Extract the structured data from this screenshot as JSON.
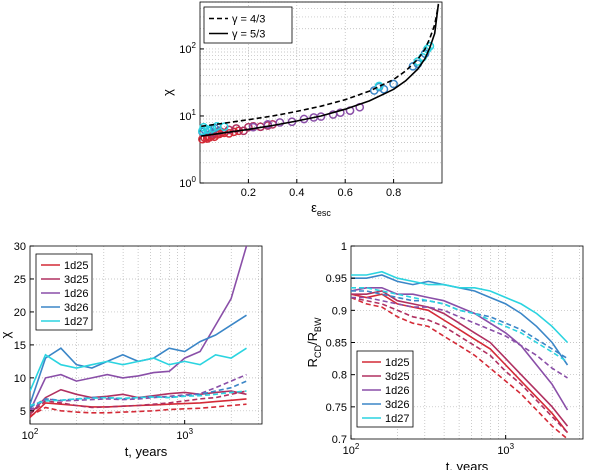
{
  "chart_data": [
    {
      "type": "scatter",
      "title": "",
      "xlabel": "ε",
      "xlabel_sub": "esc",
      "ylabel": "χ",
      "xlim": [
        0,
        1
      ],
      "ylim_log10": [
        0,
        2.7
      ],
      "yscale": "log",
      "xticks": [
        0.2,
        0.4,
        0.6,
        0.8
      ],
      "xtick_labels": [
        "0.2",
        "0.4",
        "0.6",
        "0.8"
      ],
      "yticks_log10": [
        0,
        1,
        2
      ],
      "ytick_bases": [
        "10",
        "10",
        "10"
      ],
      "ytick_exps": [
        "0",
        "1",
        "2"
      ],
      "grid": true,
      "legend_position": "top-left",
      "legend": [
        "γ = 4/3",
        "γ = 5/3"
      ],
      "curves": [
        {
          "name": "γ = 4/3",
          "style": "dashed",
          "x": [
            0.005,
            0.1,
            0.2,
            0.3,
            0.4,
            0.5,
            0.6,
            0.7,
            0.8,
            0.85,
            0.9,
            0.93,
            0.95,
            0.97,
            0.985
          ],
          "y": [
            7.0,
            7.8,
            8.8,
            10.0,
            11.7,
            14.0,
            17.5,
            23.5,
            35.0,
            47.0,
            70.0,
            100.0,
            145.0,
            230.0,
            450.0
          ]
        },
        {
          "name": "γ = 5/3",
          "style": "solid",
          "x": [
            0.005,
            0.1,
            0.2,
            0.3,
            0.4,
            0.5,
            0.6,
            0.7,
            0.8,
            0.85,
            0.9,
            0.93,
            0.95,
            0.97,
            0.985
          ],
          "y": [
            5.0,
            5.6,
            6.3,
            7.2,
            8.4,
            10.0,
            12.6,
            16.8,
            25.0,
            33.5,
            50.0,
            72.0,
            105.0,
            170.0,
            470.0
          ]
        }
      ],
      "scatter_series": [
        {
          "name": "1d25",
          "color": "#d42a37",
          "x": [
            0.01,
            0.02,
            0.03,
            0.04,
            0.05,
            0.06,
            0.08,
            0.1,
            0.12,
            0.14,
            0.16,
            0.03,
            0.05,
            0.07,
            0.09
          ],
          "y": [
            4.5,
            4.7,
            5.0,
            4.8,
            5.2,
            4.9,
            5.4,
            5.6,
            5.5,
            5.8,
            6.0,
            4.6,
            5.1,
            5.3,
            5.7
          ]
        },
        {
          "name": "3d25",
          "color": "#b03060",
          "x": [
            0.05,
            0.08,
            0.12,
            0.15,
            0.18,
            0.2,
            0.22,
            0.25,
            0.28,
            0.3
          ],
          "y": [
            5.5,
            6.0,
            6.2,
            6.5,
            6.0,
            6.8,
            7.0,
            6.9,
            7.2,
            7.5
          ]
        },
        {
          "name": "1d26",
          "color": "#8a4fa8",
          "x": [
            0.22,
            0.28,
            0.33,
            0.38,
            0.43,
            0.47,
            0.5,
            0.55,
            0.58,
            0.62,
            0.66
          ],
          "y": [
            6.8,
            7.5,
            8.0,
            8.2,
            9.0,
            9.5,
            9.8,
            10.5,
            11.2,
            12.0,
            13.5
          ]
        },
        {
          "name": "3d26",
          "color": "#3b86c7",
          "x": [
            0.01,
            0.02,
            0.04,
            0.06,
            0.72,
            0.74,
            0.76,
            0.8,
            0.88,
            0.9,
            0.93
          ],
          "y": [
            5.8,
            6.2,
            6.0,
            6.6,
            24.0,
            27.0,
            25.0,
            30.0,
            55.0,
            60.0,
            85.0
          ]
        },
        {
          "name": "1d27",
          "color": "#2bd4e0",
          "x": [
            0.01,
            0.015,
            0.03,
            0.05,
            0.07,
            0.1,
            0.74,
            0.9,
            0.92,
            0.94,
            0.95
          ],
          "y": [
            6.0,
            6.8,
            6.3,
            6.5,
            7.0,
            6.9,
            28.0,
            65.0,
            75.0,
            100.0,
            110.0
          ]
        }
      ]
    },
    {
      "type": "line",
      "title": "",
      "xlabel": "t, years",
      "ylabel": "χ",
      "xscale": "log",
      "xlim_log10": [
        2,
        3.5
      ],
      "xticks_log10": [
        2,
        3
      ],
      "xtick_bases": [
        "10",
        "10"
      ],
      "xtick_exps": [
        "2",
        "3"
      ],
      "ylim": [
        3,
        30
      ],
      "yticks": [
        5,
        10,
        15,
        20,
        25,
        30
      ],
      "ytick_labels": [
        "5",
        "10",
        "15",
        "20",
        "25",
        "30"
      ],
      "grid": true,
      "legend_position": "top-left",
      "legend": [
        "1d25",
        "3d25",
        "1d26",
        "3d26",
        "1d27"
      ],
      "x_log10": [
        2.0,
        2.1,
        2.2,
        2.3,
        2.4,
        2.5,
        2.6,
        2.7,
        2.8,
        2.9,
        3.0,
        3.1,
        3.2,
        3.3,
        3.4
      ],
      "series": [
        {
          "name": "1d25",
          "color": "#d42a37",
          "style": "solid",
          "values": [
            4.0,
            6.2,
            6.0,
            5.8,
            5.6,
            5.6,
            5.7,
            5.8,
            5.9,
            6.0,
            6.1,
            6.2,
            6.4,
            6.6,
            6.8
          ]
        },
        {
          "name": "3d25",
          "color": "#b03060",
          "style": "solid",
          "values": [
            4.5,
            7.0,
            8.2,
            7.5,
            7.0,
            7.2,
            7.5,
            7.0,
            7.3,
            7.6,
            7.8,
            7.5,
            7.8,
            8.0,
            7.5
          ]
        },
        {
          "name": "1d26",
          "color": "#8a4fa8",
          "style": "solid",
          "values": [
            5.0,
            10.0,
            10.5,
            9.5,
            10.0,
            10.5,
            10.0,
            10.3,
            10.8,
            11.0,
            13.0,
            14.0,
            18.0,
            22.0,
            30.0
          ]
        },
        {
          "name": "3d26",
          "color": "#3b86c7",
          "style": "solid",
          "values": [
            6.0,
            13.0,
            14.5,
            12.0,
            11.5,
            12.5,
            13.5,
            12.5,
            13.0,
            14.5,
            14.0,
            15.5,
            16.5,
            18.0,
            19.5
          ]
        },
        {
          "name": "1d27",
          "color": "#2bd4e0",
          "style": "solid",
          "values": [
            8.0,
            13.5,
            12.0,
            11.5,
            12.0,
            12.5,
            12.0,
            12.5,
            13.0,
            12.0,
            12.5,
            12.0,
            13.5,
            13.0,
            14.5
          ]
        },
        {
          "name": "1d25",
          "color": "#d42a37",
          "style": "dashed",
          "values": [
            4.2,
            5.5,
            5.0,
            4.8,
            4.7,
            4.7,
            4.8,
            4.9,
            5.0,
            5.2,
            5.3,
            5.4,
            5.6,
            5.8,
            6.0
          ]
        },
        {
          "name": "3d25",
          "color": "#b03060",
          "style": "dashed",
          "values": [
            4.5,
            6.5,
            6.2,
            5.8,
            5.5,
            5.6,
            5.7,
            5.8,
            6.0,
            6.2,
            6.5,
            6.8,
            7.0,
            7.5,
            8.0
          ]
        },
        {
          "name": "1d26",
          "color": "#8a4fa8",
          "style": "dashed",
          "values": [
            5.0,
            6.8,
            6.5,
            6.6,
            6.7,
            6.8,
            6.7,
            6.8,
            7.0,
            7.2,
            7.4,
            7.6,
            8.5,
            9.5,
            10.5
          ]
        },
        {
          "name": "3d26",
          "color": "#3b86c7",
          "style": "dashed",
          "values": [
            5.5,
            6.8,
            6.6,
            6.8,
            7.0,
            7.0,
            6.8,
            7.0,
            7.2,
            7.0,
            7.3,
            7.5,
            8.0,
            8.5,
            9.5
          ]
        },
        {
          "name": "1d27",
          "color": "#2bd4e0",
          "style": "dashed",
          "values": [
            5.8,
            6.5,
            6.6,
            6.8,
            6.9,
            7.0,
            6.9,
            7.0,
            7.1,
            7.0,
            7.2,
            7.3,
            7.5,
            7.8,
            8.0
          ]
        }
      ]
    },
    {
      "type": "line",
      "title": "",
      "xlabel": "t, years",
      "ylabel": "R",
      "ylabel_sub1": "CD",
      "ylabel_mid": "/R",
      "ylabel_sub2": "BW",
      "xscale": "log",
      "xlim_log10": [
        2,
        3.5
      ],
      "xticks_log10": [
        2,
        3
      ],
      "xtick_bases": [
        "10",
        "10"
      ],
      "xtick_exps": [
        "2",
        "3"
      ],
      "ylim": [
        0.7,
        1.0
      ],
      "yticks": [
        0.7,
        0.75,
        0.8,
        0.85,
        0.9,
        0.95,
        1.0
      ],
      "ytick_labels": [
        "0.7",
        "0.75",
        "0.8",
        "0.85",
        "0.9",
        "0.95",
        "1"
      ],
      "grid": true,
      "legend_position": "bottom-left",
      "legend": [
        "1d25",
        "3d25",
        "1d26",
        "3d26",
        "1d27"
      ],
      "x_log10": [
        2.0,
        2.1,
        2.2,
        2.3,
        2.4,
        2.5,
        2.6,
        2.7,
        2.8,
        2.9,
        3.0,
        3.1,
        3.2,
        3.3,
        3.4
      ],
      "series": [
        {
          "name": "1d25",
          "color": "#d42a37",
          "style": "solid",
          "values": [
            0.925,
            0.92,
            0.925,
            0.91,
            0.905,
            0.9,
            0.885,
            0.87,
            0.855,
            0.84,
            0.815,
            0.79,
            0.765,
            0.74,
            0.71
          ]
        },
        {
          "name": "3d25",
          "color": "#b03060",
          "style": "solid",
          "values": [
            0.925,
            0.925,
            0.93,
            0.915,
            0.91,
            0.905,
            0.895,
            0.88,
            0.865,
            0.85,
            0.825,
            0.8,
            0.775,
            0.75,
            0.72
          ]
        },
        {
          "name": "1d26",
          "color": "#8a4fa8",
          "style": "solid",
          "values": [
            0.93,
            0.935,
            0.935,
            0.925,
            0.925,
            0.92,
            0.915,
            0.905,
            0.895,
            0.88,
            0.865,
            0.845,
            0.815,
            0.785,
            0.745
          ]
        },
        {
          "name": "3d26",
          "color": "#3b86c7",
          "style": "solid",
          "values": [
            0.95,
            0.95,
            0.955,
            0.945,
            0.94,
            0.945,
            0.94,
            0.935,
            0.93,
            0.92,
            0.91,
            0.895,
            0.875,
            0.85,
            0.815
          ]
        },
        {
          "name": "1d27",
          "color": "#2bd4e0",
          "style": "solid",
          "values": [
            0.955,
            0.955,
            0.96,
            0.95,
            0.945,
            0.94,
            0.94,
            0.935,
            0.935,
            0.93,
            0.92,
            0.91,
            0.895,
            0.875,
            0.85
          ]
        },
        {
          "name": "1d25",
          "color": "#d42a37",
          "style": "dashed",
          "values": [
            0.92,
            0.91,
            0.905,
            0.89,
            0.88,
            0.875,
            0.86,
            0.845,
            0.83,
            0.81,
            0.79,
            0.77,
            0.745,
            0.72,
            0.7
          ]
        },
        {
          "name": "3d25",
          "color": "#b03060",
          "style": "dashed",
          "values": [
            0.92,
            0.915,
            0.91,
            0.9,
            0.89,
            0.885,
            0.875,
            0.86,
            0.845,
            0.83,
            0.805,
            0.785,
            0.76,
            0.735,
            0.71
          ]
        },
        {
          "name": "1d26",
          "color": "#8a4fa8",
          "style": "dashed",
          "values": [
            0.92,
            0.92,
            0.915,
            0.91,
            0.905,
            0.905,
            0.9,
            0.89,
            0.88,
            0.87,
            0.86,
            0.845,
            0.83,
            0.81,
            0.795
          ]
        },
        {
          "name": "3d26",
          "color": "#3b86c7",
          "style": "dashed",
          "values": [
            0.93,
            0.93,
            0.925,
            0.92,
            0.915,
            0.915,
            0.91,
            0.9,
            0.895,
            0.89,
            0.88,
            0.87,
            0.855,
            0.84,
            0.825
          ]
        },
        {
          "name": "1d27",
          "color": "#2bd4e0",
          "style": "dashed",
          "values": [
            0.935,
            0.935,
            0.93,
            0.925,
            0.92,
            0.915,
            0.91,
            0.9,
            0.895,
            0.885,
            0.875,
            0.865,
            0.85,
            0.835,
            0.82
          ]
        }
      ]
    }
  ]
}
